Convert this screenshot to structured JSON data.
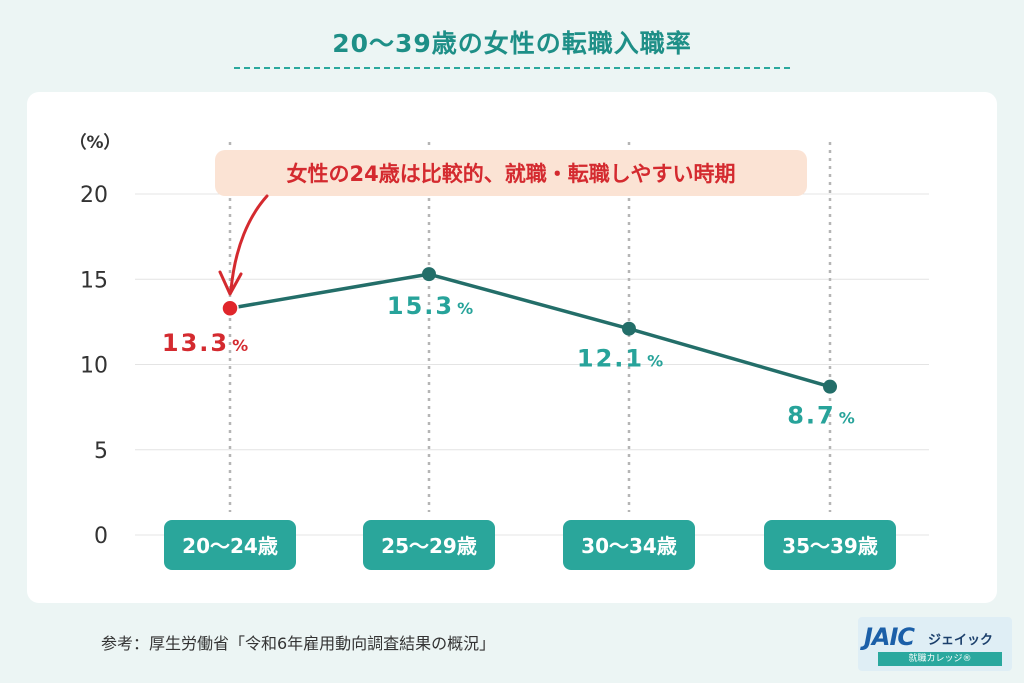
{
  "title": "20〜39歳の女性の転職入職率",
  "source": "参考：厚生労働省「令和6年雇用動向調査結果の概況」",
  "logo": {
    "mark": "JAIC",
    "name": "ジェイック",
    "sub": "就職カレッジ®"
  },
  "annotation": "女性の24歳は比較的、就職・転職しやすい時期",
  "colors": {
    "line": "#236e69",
    "highlight": "#e0262b",
    "label": "#27a39a",
    "badge": "#2aa69b",
    "callout_bg": "#fbe3d4"
  },
  "chart_data": {
    "type": "line",
    "categories": [
      "20〜24歳",
      "25〜29歳",
      "30〜34歳",
      "35〜39歳"
    ],
    "values": [
      13.3,
      15.3,
      12.1,
      8.7
    ],
    "value_labels": [
      "13.3",
      "15.3",
      "12.1",
      "8.7"
    ],
    "unit": "%",
    "ylabel": "（%）",
    "ylim": [
      0,
      20
    ],
    "yticks": [
      "0",
      "5",
      "10",
      "15",
      "20"
    ],
    "highlight_index": 0,
    "grid": true
  }
}
